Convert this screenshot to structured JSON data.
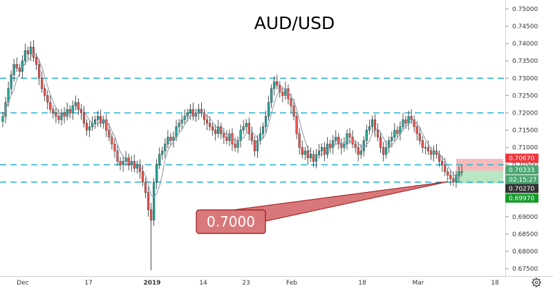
{
  "chart_data": {
    "type": "candlestick",
    "title": "AUD/USD",
    "y_axis": {
      "position": "right",
      "range": [
        0.6735,
        0.7525
      ],
      "ticks": [
        "0.75000",
        "0.74500",
        "0.74000",
        "0.73500",
        "0.73000",
        "0.72500",
        "0.72000",
        "0.71500",
        "0.71000",
        "0.70500",
        "0.70000",
        "0.69500",
        "0.69000",
        "0.68500",
        "0.68000",
        "0.67500"
      ]
    },
    "x_axis": {
      "labels": [
        "Dec",
        "17",
        "2019",
        "14",
        "23",
        "Feb",
        "18",
        "Mar",
        "18"
      ]
    },
    "support_resistance_levels": [
      0.73,
      0.72,
      0.705,
      0.7
    ],
    "level_color": "#26b6d0",
    "callout": {
      "label": "0.7000",
      "fill": "#d9787a",
      "border": "#a52a2a"
    },
    "price_tags": [
      {
        "value": "0.70670",
        "bg": "#f2343a"
      },
      {
        "value": "0.70333",
        "bg": "#4ca470"
      },
      {
        "value": "02:15:27",
        "bg": "#4ca470"
      },
      {
        "value": "0.70270",
        "bg": "#333333"
      },
      {
        "value": "0.69970",
        "bg": "#159a2a"
      }
    ],
    "position_zones": {
      "stop_zone": {
        "from": 0.7033,
        "to": 0.7067,
        "color": "#f7b9ba"
      },
      "target_zone": {
        "from": 0.6997,
        "to": 0.7033,
        "color": "#b9e6c3"
      }
    },
    "up_color": "#26a69a",
    "down_color": "#ef5350",
    "ma_color": "#8a94a8",
    "series_close": [
      0.719,
      0.723,
      0.727,
      0.731,
      0.734,
      0.733,
      0.732,
      0.735,
      0.738,
      0.737,
      0.739,
      0.736,
      0.734,
      0.73,
      0.727,
      0.725,
      0.723,
      0.721,
      0.72,
      0.719,
      0.718,
      0.72,
      0.719,
      0.721,
      0.72,
      0.722,
      0.723,
      0.721,
      0.72,
      0.717,
      0.715,
      0.716,
      0.717,
      0.718,
      0.719,
      0.717,
      0.718,
      0.715,
      0.713,
      0.711,
      0.709,
      0.706,
      0.705,
      0.706,
      0.707,
      0.705,
      0.706,
      0.704,
      0.705,
      0.703,
      0.7,
      0.697,
      0.692,
      0.689,
      0.7,
      0.705,
      0.708,
      0.709,
      0.711,
      0.713,
      0.712,
      0.713,
      0.716,
      0.717,
      0.718,
      0.719,
      0.72,
      0.721,
      0.719,
      0.72,
      0.721,
      0.72,
      0.718,
      0.717,
      0.716,
      0.715,
      0.714,
      0.716,
      0.714,
      0.713,
      0.712,
      0.714,
      0.711,
      0.71,
      0.712,
      0.715,
      0.716,
      0.717,
      0.714,
      0.712,
      0.709,
      0.712,
      0.714,
      0.716,
      0.719,
      0.723,
      0.727,
      0.729,
      0.728,
      0.726,
      0.725,
      0.727,
      0.724,
      0.722,
      0.719,
      0.714,
      0.71,
      0.708,
      0.709,
      0.707,
      0.708,
      0.706,
      0.708,
      0.709,
      0.71,
      0.708,
      0.711,
      0.71,
      0.712,
      0.713,
      0.711,
      0.71,
      0.711,
      0.714,
      0.713,
      0.711,
      0.71,
      0.708,
      0.709,
      0.712,
      0.715,
      0.716,
      0.718,
      0.715,
      0.713,
      0.71,
      0.708,
      0.71,
      0.712,
      0.713,
      0.715,
      0.714,
      0.716,
      0.718,
      0.717,
      0.719,
      0.718,
      0.716,
      0.714,
      0.712,
      0.71,
      0.71,
      0.709,
      0.708,
      0.709,
      0.708,
      0.706,
      0.705,
      0.703,
      0.702,
      0.701,
      0.7,
      0.702,
      0.703,
      0.703
    ],
    "series_low_spike": {
      "index": 53,
      "value": 0.6745
    }
  }
}
